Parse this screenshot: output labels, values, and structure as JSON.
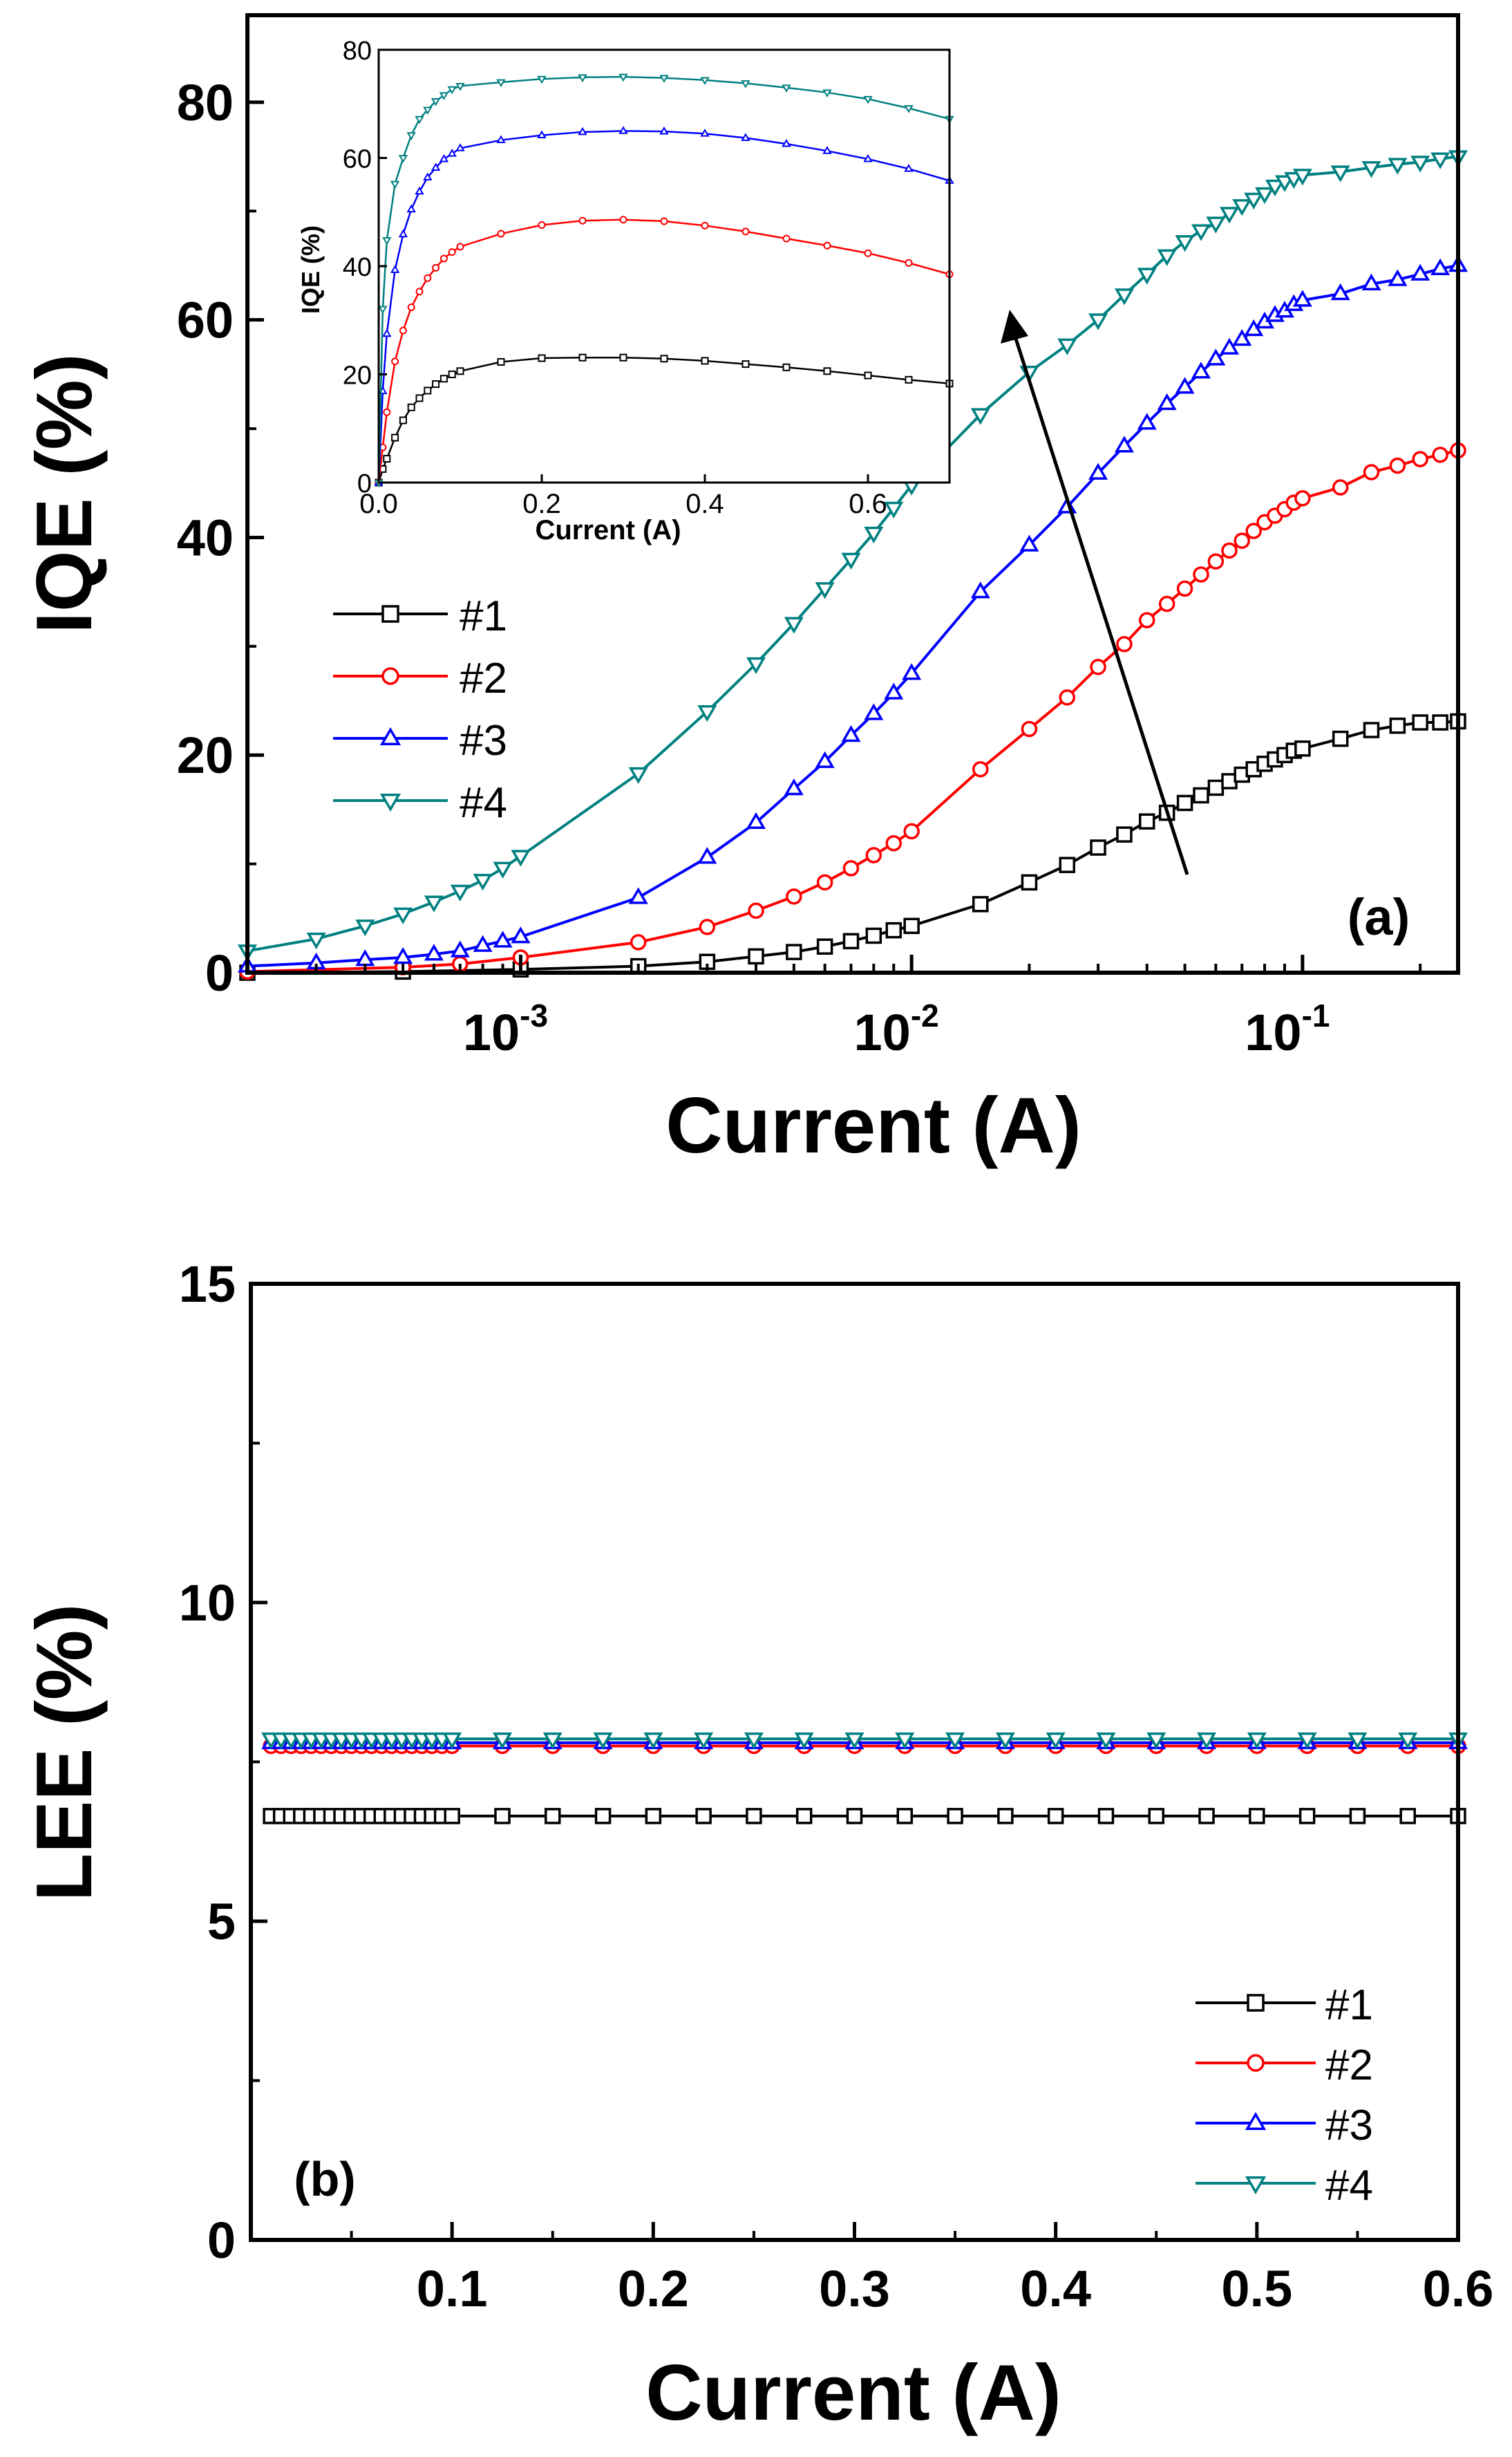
{
  "chart_data": [
    {
      "id": "a",
      "type": "line",
      "panel_label": "(a)",
      "xlabel": "Current (A)",
      "ylabel": "IQE (%)",
      "xscale": "log",
      "xlim": [
        0.0002,
        0.25
      ],
      "ylim": [
        0,
        88
      ],
      "yticks": [
        0,
        20,
        40,
        60,
        80
      ],
      "xticks": [
        {
          "value": 0.001,
          "base": "10",
          "exp": "-3"
        },
        {
          "value": 0.01,
          "base": "10",
          "exp": "-2"
        },
        {
          "value": 0.1,
          "base": "10",
          "exp": "-1"
        }
      ],
      "legend": {
        "position": "middle-left",
        "entries": [
          "#1",
          "#2",
          "#3",
          "#4"
        ]
      },
      "annotation": "arrow indicating IQE increasing from #1 to #4",
      "series": [
        {
          "name": "#1",
          "color": "#000000",
          "marker": "square",
          "x": [
            0.0002,
            0.0005,
            0.001,
            0.002,
            0.003,
            0.004,
            0.005,
            0.006,
            0.007,
            0.008,
            0.009,
            0.01,
            0.015,
            0.02,
            0.025,
            0.03,
            0.035,
            0.04,
            0.045,
            0.05,
            0.055,
            0.06,
            0.065,
            0.07,
            0.075,
            0.08,
            0.085,
            0.09,
            0.095,
            0.1,
            0.125,
            0.15,
            0.175,
            0.2,
            0.225,
            0.25
          ],
          "y": [
            0.0,
            0.1,
            0.3,
            0.6,
            1.0,
            1.5,
            1.9,
            2.4,
            2.9,
            3.4,
            3.9,
            4.3,
            6.3,
            8.3,
            9.9,
            11.5,
            12.7,
            13.9,
            14.7,
            15.6,
            16.3,
            17.0,
            17.6,
            18.2,
            18.7,
            19.2,
            19.6,
            20.0,
            20.4,
            20.6,
            21.5,
            22.3,
            22.7,
            23.0,
            23.0,
            23.1
          ]
        },
        {
          "name": "#2",
          "color": "#ff0000",
          "marker": "circle",
          "x": [
            0.0002,
            0.0005,
            0.0007,
            0.001,
            0.002,
            0.003,
            0.004,
            0.005,
            0.006,
            0.007,
            0.008,
            0.009,
            0.01,
            0.015,
            0.02,
            0.025,
            0.03,
            0.035,
            0.04,
            0.045,
            0.05,
            0.055,
            0.06,
            0.065,
            0.07,
            0.075,
            0.08,
            0.085,
            0.09,
            0.095,
            0.1,
            0.125,
            0.15,
            0.175,
            0.2,
            0.225,
            0.25
          ],
          "y": [
            0.1,
            0.5,
            0.8,
            1.4,
            2.8,
            4.2,
            5.7,
            7.0,
            8.3,
            9.6,
            10.8,
            11.9,
            13.0,
            18.7,
            22.4,
            25.3,
            28.1,
            30.2,
            32.4,
            33.9,
            35.3,
            36.6,
            37.8,
            38.8,
            39.7,
            40.6,
            41.4,
            42.0,
            42.6,
            43.2,
            43.6,
            44.6,
            46.0,
            46.6,
            47.2,
            47.6,
            48.0
          ]
        },
        {
          "name": "#3",
          "color": "#0000ff",
          "marker": "triangle-up",
          "x": [
            0.0002,
            0.0003,
            0.0004,
            0.0005,
            0.0006,
            0.0007,
            0.0008,
            0.0009,
            0.001,
            0.002,
            0.003,
            0.004,
            0.005,
            0.006,
            0.007,
            0.008,
            0.009,
            0.01,
            0.015,
            0.02,
            0.025,
            0.03,
            0.035,
            0.04,
            0.045,
            0.05,
            0.055,
            0.06,
            0.065,
            0.07,
            0.075,
            0.08,
            0.085,
            0.09,
            0.095,
            0.1,
            0.125,
            0.15,
            0.175,
            0.2,
            0.225,
            0.25
          ],
          "y": [
            0.6,
            0.9,
            1.2,
            1.4,
            1.7,
            2.0,
            2.5,
            2.9,
            3.3,
            6.9,
            10.6,
            13.8,
            16.9,
            19.4,
            21.8,
            23.8,
            25.7,
            27.5,
            35.0,
            39.3,
            42.8,
            45.9,
            48.4,
            50.5,
            52.3,
            53.8,
            55.2,
            56.4,
            57.4,
            58.2,
            59.1,
            59.8,
            60.4,
            60.8,
            61.4,
            61.8,
            62.4,
            63.3,
            63.7,
            64.2,
            64.7,
            65.0
          ]
        },
        {
          "name": "#4",
          "color": "#008080",
          "marker": "triangle-down",
          "x": [
            0.0002,
            0.0003,
            0.0004,
            0.0005,
            0.0006,
            0.0007,
            0.0008,
            0.0009,
            0.001,
            0.002,
            0.003,
            0.004,
            0.005,
            0.006,
            0.007,
            0.008,
            0.009,
            0.01,
            0.015,
            0.02,
            0.025,
            0.03,
            0.035,
            0.04,
            0.045,
            0.05,
            0.055,
            0.06,
            0.065,
            0.07,
            0.075,
            0.08,
            0.085,
            0.09,
            0.095,
            0.1,
            0.125,
            0.15,
            0.175,
            0.2,
            0.225,
            0.25
          ],
          "y": [
            2.0,
            3.1,
            4.3,
            5.4,
            6.5,
            7.5,
            8.5,
            9.6,
            10.7,
            18.3,
            24.0,
            28.4,
            32.1,
            35.3,
            38.0,
            40.4,
            42.7,
            44.8,
            51.3,
            55.2,
            57.7,
            60.0,
            62.3,
            64.2,
            65.9,
            67.2,
            68.2,
            68.9,
            69.8,
            70.5,
            71.1,
            71.6,
            72.3,
            72.7,
            73.0,
            73.3,
            73.6,
            74.0,
            74.3,
            74.5,
            74.8,
            75.0
          ]
        }
      ]
    },
    {
      "id": "a_inset",
      "type": "line",
      "title": "",
      "xlabel": "Current (A)",
      "ylabel": "IQE (%)",
      "xlim": [
        0.0,
        0.7
      ],
      "ylim": [
        0,
        80
      ],
      "xticks": [
        0.0,
        0.2,
        0.4,
        0.6
      ],
      "xtick_labels": [
        "0.0",
        "0.2",
        "0.4",
        "0.6"
      ],
      "yticks": [
        0,
        20,
        40,
        60,
        80
      ],
      "ytick_labels": [
        "0",
        "20",
        "40",
        "60",
        "80"
      ],
      "series": [
        {
          "name": "#1",
          "color": "#000000",
          "marker": "square",
          "x": [
            0.0,
            0.005,
            0.01,
            0.02,
            0.03,
            0.04,
            0.05,
            0.06,
            0.07,
            0.08,
            0.09,
            0.1,
            0.15,
            0.2,
            0.25,
            0.3,
            0.35,
            0.4,
            0.45,
            0.5,
            0.55,
            0.6,
            0.65,
            0.7
          ],
          "y": [
            0.0,
            2.5,
            4.4,
            8.3,
            11.5,
            13.9,
            15.6,
            17.0,
            18.2,
            19.2,
            20.0,
            20.6,
            22.3,
            23.0,
            23.1,
            23.1,
            22.9,
            22.5,
            21.9,
            21.3,
            20.6,
            19.8,
            19.0,
            18.3
          ]
        },
        {
          "name": "#2",
          "color": "#ff0000",
          "marker": "circle",
          "x": [
            0.0,
            0.005,
            0.01,
            0.02,
            0.03,
            0.04,
            0.05,
            0.06,
            0.07,
            0.08,
            0.09,
            0.1,
            0.15,
            0.2,
            0.25,
            0.3,
            0.35,
            0.4,
            0.45,
            0.5,
            0.55,
            0.6,
            0.65,
            0.7
          ],
          "y": [
            0.0,
            6.5,
            13.0,
            22.4,
            28.1,
            32.4,
            35.3,
            37.8,
            39.7,
            41.4,
            42.6,
            43.6,
            46.0,
            47.6,
            48.4,
            48.6,
            48.3,
            47.5,
            46.4,
            45.1,
            43.8,
            42.4,
            40.6,
            38.5
          ]
        },
        {
          "name": "#3",
          "color": "#0000ff",
          "marker": "triangle-up",
          "x": [
            0.0,
            0.005,
            0.01,
            0.02,
            0.03,
            0.04,
            0.05,
            0.06,
            0.07,
            0.08,
            0.09,
            0.1,
            0.15,
            0.2,
            0.25,
            0.3,
            0.35,
            0.4,
            0.45,
            0.5,
            0.55,
            0.6,
            0.65,
            0.7
          ],
          "y": [
            0.0,
            16.9,
            27.5,
            39.3,
            45.9,
            50.5,
            53.8,
            56.4,
            58.2,
            59.8,
            60.8,
            61.8,
            63.3,
            64.2,
            64.8,
            65.0,
            64.9,
            64.5,
            63.7,
            62.6,
            61.3,
            59.8,
            58.0,
            55.8
          ]
        },
        {
          "name": "#4",
          "color": "#008080",
          "marker": "triangle-down",
          "x": [
            0.0,
            0.005,
            0.01,
            0.02,
            0.03,
            0.04,
            0.05,
            0.06,
            0.07,
            0.08,
            0.09,
            0.1,
            0.15,
            0.2,
            0.25,
            0.3,
            0.35,
            0.4,
            0.45,
            0.5,
            0.55,
            0.6,
            0.65,
            0.7
          ],
          "y": [
            0.0,
            32.1,
            44.8,
            55.2,
            60.0,
            64.2,
            67.2,
            68.9,
            70.5,
            71.6,
            72.7,
            73.3,
            74.0,
            74.6,
            74.9,
            75.0,
            74.8,
            74.4,
            73.8,
            73.0,
            72.1,
            70.9,
            69.2,
            67.2
          ]
        }
      ]
    },
    {
      "id": "b",
      "type": "line",
      "panel_label": "(b)",
      "xlabel": "Current (A)",
      "ylabel": "LEE (%)",
      "xlim": [
        0.0,
        0.6
      ],
      "ylim": [
        0,
        15
      ],
      "xticks": [
        0.1,
        0.2,
        0.3,
        0.4,
        0.5,
        0.6
      ],
      "xtick_labels": [
        "0.1",
        "0.2",
        "0.3",
        "0.4",
        "0.5",
        "0.6"
      ],
      "yticks": [
        0,
        5,
        10,
        15
      ],
      "ytick_labels": [
        "0",
        "5",
        "10",
        "15"
      ],
      "legend": {
        "position": "bottom-right",
        "entries": [
          "#1",
          "#2",
          "#3",
          "#4"
        ]
      },
      "series": [
        {
          "name": "#1",
          "color": "#000000",
          "marker": "square",
          "value": 6.65
        },
        {
          "name": "#2",
          "color": "#ff0000",
          "marker": "circle",
          "value": 7.75
        },
        {
          "name": "#3",
          "color": "#0000ff",
          "marker": "triangle-up",
          "value": 7.8
        },
        {
          "name": "#4",
          "color": "#008080",
          "marker": "triangle-down",
          "value": 7.86
        }
      ]
    }
  ]
}
